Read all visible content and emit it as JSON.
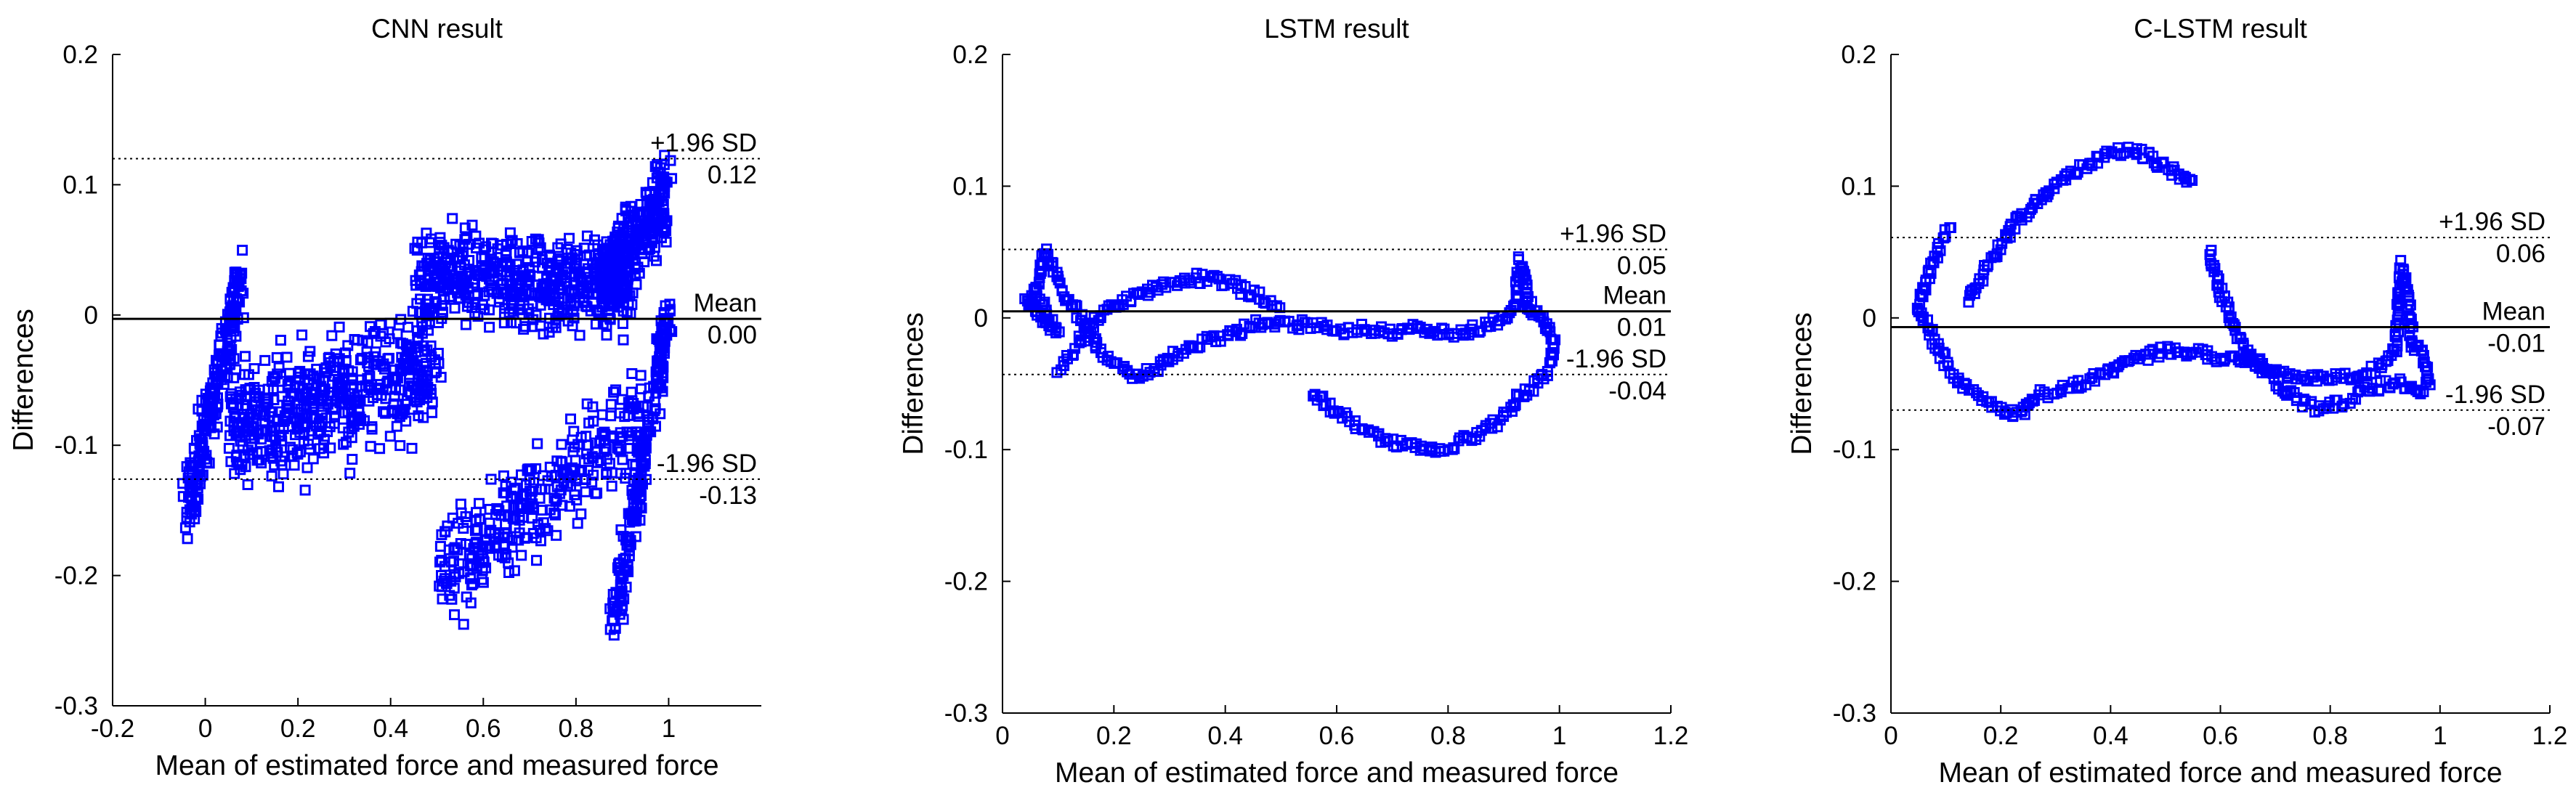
{
  "chart_data": [
    {
      "type": "scatter",
      "title": "CNN result",
      "xlabel": "Mean of estimated force and measured force",
      "ylabel": "Differences",
      "xlim": [
        -0.2,
        1.2
      ],
      "ylim": [
        -0.3,
        0.2
      ],
      "xticks": [
        -0.2,
        0,
        0.2,
        0.4,
        0.6,
        0.8,
        1
      ],
      "xtick_labels": [
        "-0.2",
        "0",
        "0.2",
        "0.4",
        "0.6",
        "0.8",
        "1"
      ],
      "yticks": [
        -0.3,
        -0.2,
        -0.1,
        0,
        0.1,
        0.2
      ],
      "ytick_labels": [
        "-0.3",
        "-0.2",
        "-0.1",
        "0",
        "0.1",
        "0.2"
      ],
      "grid": false,
      "marker": "square",
      "marker_color": "#0000ff",
      "reference_lines": [
        {
          "value": 0.12,
          "style": "dotted",
          "label": "+1.96 SD",
          "value_label": "0.12"
        },
        {
          "value": -0.003,
          "style": "solid",
          "label": "Mean",
          "value_label": "0.00"
        },
        {
          "value": -0.126,
          "style": "dotted",
          "label": "-1.96 SD",
          "value_label": "-0.13"
        }
      ],
      "point_groups": [
        {
          "x_range": [
            -0.04,
            0.08
          ],
          "y_center": [
            -0.15,
            0.03
          ],
          "spread": 0.04,
          "count": 220
        },
        {
          "x_range": [
            0.05,
            0.5
          ],
          "y_center": [
            -0.09,
            -0.04
          ],
          "spread": 0.07,
          "count": 520
        },
        {
          "x_range": [
            0.45,
            0.92
          ],
          "y_center": [
            0.03,
            0.02
          ],
          "spread": 0.05,
          "count": 520
        },
        {
          "x_range": [
            0.85,
            1.0
          ],
          "y_center": [
            0.02,
            0.09
          ],
          "spread": 0.045,
          "count": 300
        },
        {
          "x_range": [
            0.5,
            0.95
          ],
          "y_center": [
            -0.2,
            -0.08
          ],
          "spread": 0.06,
          "count": 320
        },
        {
          "x_range": [
            0.88,
            1.0
          ],
          "y_center": [
            -0.24,
            0.0
          ],
          "spread": 0.03,
          "count": 220
        }
      ]
    },
    {
      "type": "scatter",
      "title": "LSTM result",
      "xlabel": "Mean of estimated force and measured force",
      "ylabel": "Differences",
      "xlim": [
        0,
        1.2
      ],
      "ylim": [
        -0.3,
        0.2
      ],
      "xticks": [
        0,
        0.2,
        0.4,
        0.6,
        0.8,
        1,
        1.2
      ],
      "xtick_labels": [
        "0",
        "0.2",
        "0.4",
        "0.6",
        "0.8",
        "1",
        "1.2"
      ],
      "yticks": [
        -0.3,
        -0.2,
        -0.1,
        0,
        0.1,
        0.2
      ],
      "ytick_labels": [
        "-0.3",
        "-0.2",
        "-0.1",
        "0",
        "0.1",
        "0.2"
      ],
      "grid": false,
      "marker": "square",
      "marker_color": "#0000ff",
      "reference_lines": [
        {
          "value": 0.052,
          "style": "dotted",
          "label": "+1.96 SD",
          "value_label": "0.05"
        },
        {
          "value": 0.005,
          "style": "solid",
          "label": "Mean",
          "value_label": "0.01"
        },
        {
          "value": -0.043,
          "style": "dotted",
          "label": "-1.96 SD",
          "value_label": "-0.04"
        }
      ],
      "curves": [
        {
          "points": [
            [
              0.05,
              0.01
            ],
            [
              0.06,
              0.02
            ],
            [
              0.07,
              0.04
            ],
            [
              0.08,
              0.05
            ],
            [
              0.09,
              0.04
            ],
            [
              0.11,
              0.02
            ],
            [
              0.14,
              0.0
            ],
            [
              0.17,
              -0.02
            ],
            [
              0.2,
              -0.035
            ],
            [
              0.24,
              -0.045
            ],
            [
              0.27,
              -0.04
            ],
            [
              0.3,
              -0.03
            ],
            [
              0.35,
              -0.02
            ],
            [
              0.4,
              -0.015
            ],
            [
              0.45,
              -0.005
            ],
            [
              0.5,
              -0.005
            ],
            [
              0.55,
              -0.005
            ],
            [
              0.6,
              -0.01
            ],
            [
              0.65,
              -0.008
            ],
            [
              0.7,
              -0.01
            ],
            [
              0.75,
              -0.008
            ],
            [
              0.8,
              -0.012
            ],
            [
              0.85,
              -0.008
            ],
            [
              0.9,
              0.0
            ],
            [
              0.92,
              0.01
            ],
            [
              0.93,
              0.045
            ],
            [
              0.94,
              0.02
            ],
            [
              0.95,
              0.005
            ],
            [
              0.96,
              0.002
            ],
            [
              0.97,
              0.0
            ],
            [
              0.98,
              -0.01
            ],
            [
              0.99,
              -0.02
            ],
            [
              0.98,
              -0.04
            ],
            [
              0.96,
              -0.05
            ],
            [
              0.93,
              -0.06
            ],
            [
              0.9,
              -0.075
            ],
            [
              0.85,
              -0.09
            ],
            [
              0.8,
              -0.097
            ],
            [
              0.75,
              -0.1
            ],
            [
              0.7,
              -0.095
            ],
            [
              0.65,
              -0.085
            ],
            [
              0.6,
              -0.07
            ],
            [
              0.55,
              -0.055
            ]
          ]
        },
        {
          "points": [
            [
              0.1,
              -0.04
            ],
            [
              0.13,
              -0.025
            ],
            [
              0.16,
              -0.005
            ],
            [
              0.2,
              0.01
            ],
            [
              0.25,
              0.018
            ],
            [
              0.3,
              0.025
            ],
            [
              0.35,
              0.03
            ],
            [
              0.4,
              0.028
            ],
            [
              0.44,
              0.02
            ],
            [
              0.48,
              0.012
            ],
            [
              0.5,
              0.01
            ]
          ]
        },
        {
          "points": [
            [
              0.04,
              0.015
            ],
            [
              0.06,
              0.005
            ],
            [
              0.08,
              -0.005
            ],
            [
              0.1,
              -0.01
            ],
            [
              0.06,
              0.02
            ],
            [
              0.05,
              0.005
            ]
          ]
        }
      ]
    },
    {
      "type": "scatter",
      "title": "C-LSTM result",
      "xlabel": "Mean of estimated force and measured force",
      "ylabel": "Differences",
      "xlim": [
        0,
        1.2
      ],
      "ylim": [
        -0.3,
        0.2
      ],
      "xticks": [
        0,
        0.2,
        0.4,
        0.6,
        0.8,
        1,
        1.2
      ],
      "xtick_labels": [
        "0",
        "0.2",
        "0.4",
        "0.6",
        "0.8",
        "1",
        "1.2"
      ],
      "yticks": [
        -0.3,
        -0.2,
        -0.1,
        0,
        0.1,
        0.2
      ],
      "ytick_labels": [
        "-0.3",
        "-0.2",
        "-0.1",
        "0",
        "0.1",
        "0.2"
      ],
      "grid": false,
      "marker": "square",
      "marker_color": "#0000ff",
      "reference_lines": [
        {
          "value": 0.061,
          "style": "dotted",
          "label": "+1.96 SD",
          "value_label": "0.06"
        },
        {
          "value": -0.007,
          "style": "solid",
          "label": "Mean",
          "value_label": "-0.01"
        },
        {
          "value": -0.07,
          "style": "dotted",
          "label": "-1.96 SD",
          "value_label": "-0.07"
        }
      ],
      "curves": [
        {
          "points": [
            [
              0.05,
              0.01
            ],
            [
              0.06,
              0.0
            ],
            [
              0.08,
              -0.02
            ],
            [
              0.1,
              -0.035
            ],
            [
              0.13,
              -0.05
            ],
            [
              0.16,
              -0.06
            ],
            [
              0.2,
              -0.07
            ],
            [
              0.23,
              -0.075
            ],
            [
              0.26,
              -0.06
            ],
            [
              0.3,
              -0.055
            ],
            [
              0.35,
              -0.05
            ],
            [
              0.4,
              -0.04
            ],
            [
              0.45,
              -0.03
            ],
            [
              0.5,
              -0.025
            ],
            [
              0.55,
              -0.025
            ],
            [
              0.6,
              -0.03
            ],
            [
              0.65,
              -0.032
            ],
            [
              0.7,
              -0.04
            ],
            [
              0.75,
              -0.045
            ],
            [
              0.8,
              -0.045
            ],
            [
              0.85,
              -0.045
            ],
            [
              0.9,
              -0.035
            ],
            [
              0.92,
              -0.02
            ],
            [
              0.93,
              0.04
            ],
            [
              0.94,
              0.02
            ],
            [
              0.95,
              -0.02
            ],
            [
              0.97,
              -0.03
            ],
            [
              0.98,
              -0.05
            ],
            [
              0.96,
              -0.055
            ],
            [
              0.93,
              -0.05
            ],
            [
              0.9,
              -0.05
            ],
            [
              0.86,
              -0.055
            ],
            [
              0.82,
              -0.065
            ],
            [
              0.78,
              -0.07
            ],
            [
              0.75,
              -0.065
            ],
            [
              0.72,
              -0.055
            ],
            [
              0.68,
              -0.04
            ],
            [
              0.64,
              -0.02
            ],
            [
              0.6,
              0.02
            ],
            [
              0.58,
              0.05
            ]
          ]
        },
        {
          "points": [
            [
              0.14,
              0.015
            ],
            [
              0.17,
              0.035
            ],
            [
              0.2,
              0.055
            ],
            [
              0.23,
              0.075
            ],
            [
              0.27,
              0.09
            ],
            [
              0.31,
              0.105
            ],
            [
              0.35,
              0.115
            ],
            [
              0.4,
              0.125
            ],
            [
              0.44,
              0.128
            ],
            [
              0.48,
              0.12
            ],
            [
              0.52,
              0.11
            ],
            [
              0.55,
              0.1
            ]
          ]
        },
        {
          "points": [
            [
              0.05,
              0.01
            ],
            [
              0.06,
              0.02
            ],
            [
              0.08,
              0.045
            ],
            [
              0.1,
              0.065
            ],
            [
              0.11,
              0.07
            ]
          ]
        }
      ]
    }
  ]
}
